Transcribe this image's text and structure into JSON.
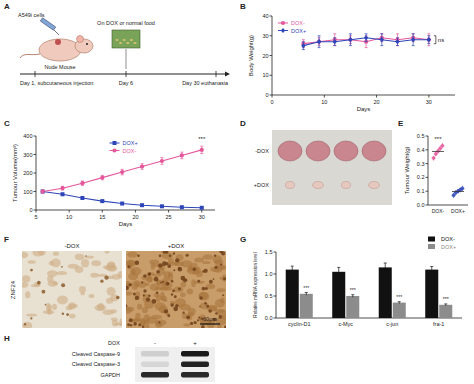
{
  "panel_labels": [
    "A",
    "B",
    "C",
    "D",
    "E",
    "F",
    "G",
    "H"
  ],
  "schematic": {
    "cells": "A549i cells",
    "animal": "Nude Mouse",
    "treatment": "On DOX or normal food",
    "timeline": [
      "Day 1, subcutaneous injection",
      "Day 6",
      "Day 30 euthanasia"
    ]
  },
  "chart_data": [
    {
      "type": "line",
      "x_label": "Days",
      "y_label": "Body Weight(g)",
      "x": [
        6,
        9,
        12,
        15,
        18,
        21,
        24,
        27,
        30
      ],
      "xlim": [
        0,
        35
      ],
      "xticks": [
        0,
        10,
        20,
        30
      ],
      "ylim": [
        0,
        40
      ],
      "yticks": [
        0,
        10,
        20,
        30,
        40
      ],
      "legend": "upper left",
      "annotations": [
        "ns"
      ],
      "series": [
        {
          "name": "DOX-",
          "color": "#e4579b",
          "marker": "circle",
          "values": [
            26,
            27,
            28,
            28,
            27,
            29,
            28,
            29,
            28
          ],
          "errors": [
            2,
            2,
            3,
            2,
            3,
            2,
            3,
            2,
            3
          ]
        },
        {
          "name": "DOX+",
          "color": "#2f46b8",
          "marker": "diamond",
          "values": [
            25,
            27,
            27,
            28,
            29,
            28,
            27,
            28,
            28
          ],
          "errors": [
            2,
            3,
            2,
            3,
            2,
            3,
            2,
            3,
            2
          ]
        }
      ]
    },
    {
      "type": "line",
      "x_label": "Days",
      "y_label": "Tumour Volume(mm³)",
      "x": [
        6,
        9,
        12,
        15,
        18,
        21,
        24,
        27,
        30
      ],
      "xlim": [
        5,
        32
      ],
      "xticks": [
        5,
        10,
        15,
        20,
        25,
        30
      ],
      "ylim": [
        0,
        400
      ],
      "yticks": [
        0,
        100,
        200,
        300,
        400
      ],
      "legend": "upper center",
      "annotations": [
        "***"
      ],
      "series": [
        {
          "name": "DOX+",
          "color": "#2f46b8",
          "marker": "square",
          "values": [
            100,
            85,
            65,
            48,
            35,
            26,
            20,
            15,
            12
          ],
          "errors": [
            6,
            6,
            5,
            5,
            4,
            4,
            3,
            3,
            3
          ]
        },
        {
          "name": "DOX-",
          "color": "#e4579b",
          "marker": "circle",
          "values": [
            100,
            118,
            145,
            175,
            205,
            235,
            265,
            295,
            325
          ],
          "errors": [
            8,
            10,
            12,
            12,
            15,
            15,
            18,
            18,
            20
          ]
        }
      ]
    },
    {
      "type": "scatter",
      "y_label": "Tumour Weight(g)",
      "categories": [
        "DOX-",
        "DOX+"
      ],
      "values": [
        [
          0.34,
          0.37,
          0.39,
          0.41,
          0.43
        ],
        [
          0.07,
          0.09,
          0.1,
          0.11,
          0.12
        ]
      ],
      "colors": [
        "#e4579b",
        "#2f46b8"
      ],
      "marker": "diamond",
      "ylim": [
        0,
        0.5
      ],
      "yticks": [
        {
          "value": 0,
          "label": "0.0"
        },
        0.1,
        0.2,
        0.3,
        0.4,
        0.5
      ],
      "annotations": [
        "***"
      ]
    },
    {
      "type": "bar",
      "y_label": "Relative mRNA expression level",
      "categories": [
        "cyclin-D1",
        "c-Myc",
        "c-jun",
        "fra-1"
      ],
      "ylim": [
        0,
        1.5
      ],
      "yticks": [
        {
          "value": 0,
          "label": "0.0"
        },
        0.5,
        {
          "value": 1,
          "label": "1.0"
        },
        1.5
      ],
      "legend": "upper right",
      "series": [
        {
          "name": "DOX-",
          "color": "#111111",
          "values": [
            1.1,
            1.05,
            1.15,
            1.1
          ],
          "errors": [
            0.08,
            0.1,
            0.1,
            0.07
          ]
        },
        {
          "name": "DOX+",
          "color": "#8c8c8c",
          "values": [
            0.55,
            0.5,
            0.35,
            0.3
          ],
          "errors": [
            0.03,
            0.03,
            0.02,
            0.02
          ]
        }
      ],
      "annotations": [
        "***",
        "***",
        "***",
        "***"
      ]
    }
  ],
  "tumour_photo": {
    "labels": [
      "-DOX",
      "+DOX"
    ]
  },
  "ihc": {
    "stain": "ZNF24",
    "labels": [
      "-DOX",
      "+DOX"
    ],
    "scale_bar": "60μm"
  },
  "western_blot": {
    "treatment": "DOX",
    "lanes": [
      "-",
      "+"
    ],
    "proteins": [
      "Cleaved Caspase-9",
      "Cleaved Caspase-3",
      "GAPDH"
    ]
  }
}
